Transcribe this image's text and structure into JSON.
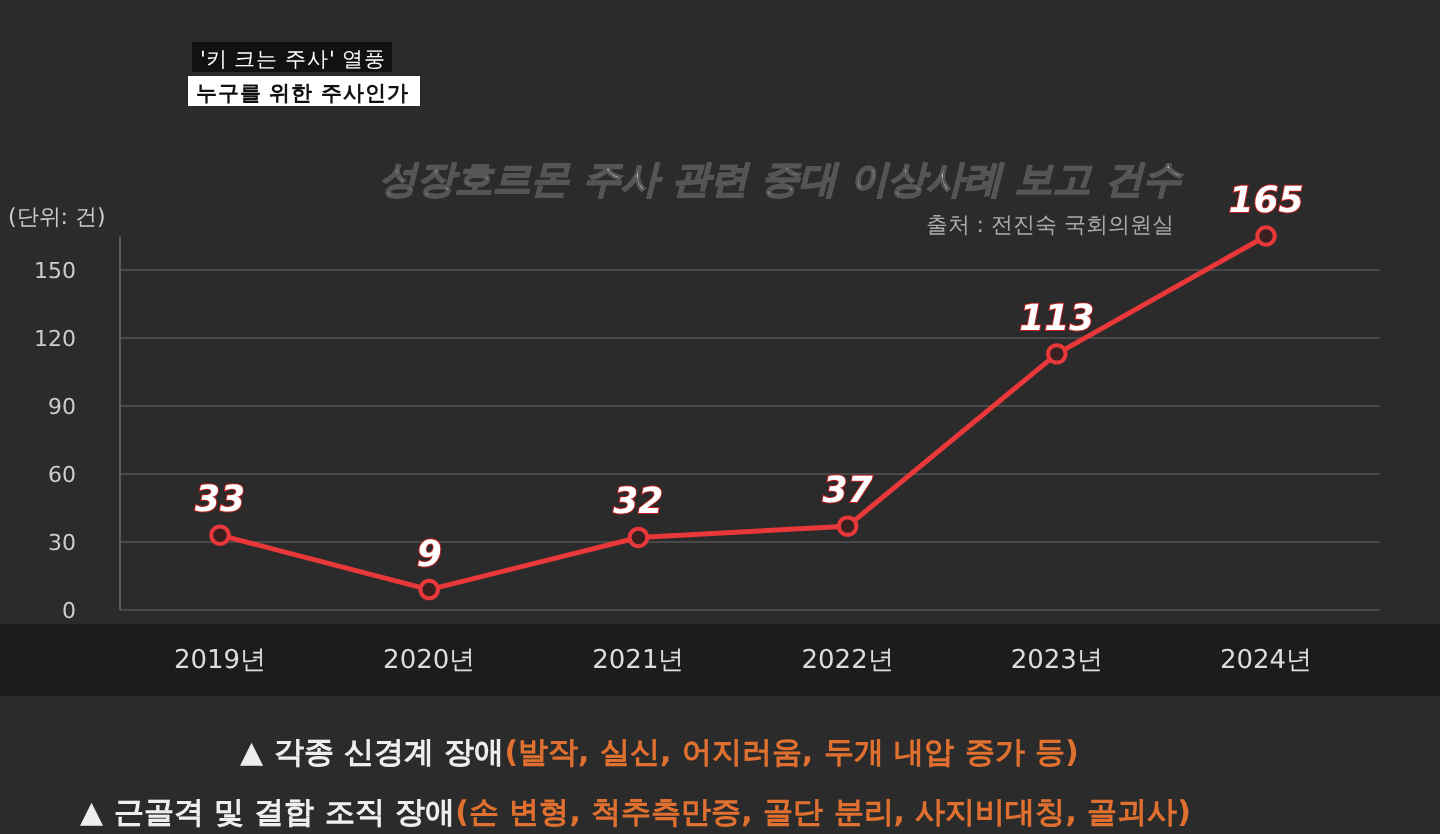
{
  "chart_data": {
    "type": "line",
    "title": "성장호르몬 주사 관련 중대 이상사례 보고 건수",
    "ylabel": "(단위: 건)",
    "categories": [
      "2019년",
      "2020년",
      "2021년",
      "2022년",
      "2023년",
      "2024년"
    ],
    "series": [
      {
        "color": "#e8383a",
        "values": [
          33,
          9,
          32,
          37,
          113,
          165
        ]
      }
    ],
    "ylim": [
      0,
      165
    ],
    "yticks": [
      0,
      30,
      60,
      90,
      120,
      150
    ],
    "grid": "y",
    "marker": "circle",
    "line_style": "solid",
    "data_labels": true,
    "annotations": [
      "'키 크는 주사' 열풍",
      "누구를 위한 주사인가",
      "출처 : 전진숙 국회의원실",
      "▲ 각종 신경계 장애(발작, 실신, 어지러움, 두개 내압 증가 등)",
      "▲ 근골격 및 결합 조직 장애(손 변형, 척추측만증, 골단 분리, 사지비대칭, 골괴사)"
    ]
  }
}
